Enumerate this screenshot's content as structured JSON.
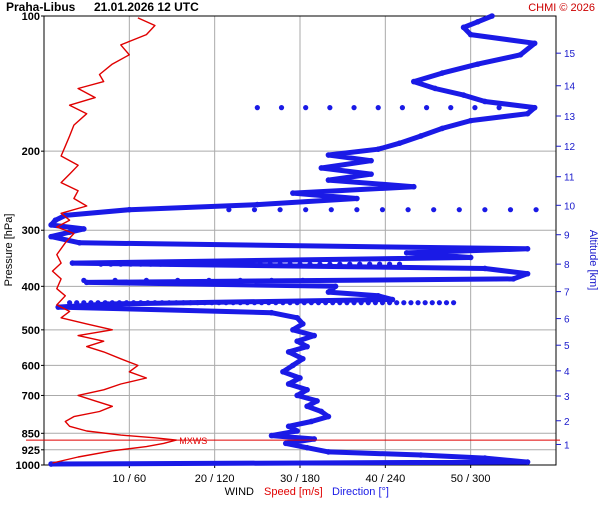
{
  "header": {
    "station": "Praha-Libus",
    "datetime": "21.01.2026 12 UTC",
    "credit": "CHMI © 2026"
  },
  "footer": {
    "wind": "WIND",
    "speed": "Speed [m/s]",
    "direction": "Direction [°]"
  },
  "colors": {
    "speed": "#e00000",
    "direction": "#1a1ae6",
    "grid": "#aaaaaa",
    "altitude_axis": "#1a1acc",
    "maxws": "#e00000"
  },
  "chart_data": {
    "type": "line",
    "y_axis": {
      "label": "Pressure [hPa]",
      "scale": "log",
      "reversed": true,
      "range": [
        1000,
        100
      ],
      "ticks": [
        100,
        200,
        300,
        400,
        500,
        600,
        700,
        850,
        925,
        1000
      ]
    },
    "x_axis": {
      "tick_labels": [
        "10 / 60",
        "20 / 120",
        "30 / 180",
        "40 / 240",
        "50 / 300"
      ],
      "speed_range_ms": [
        0,
        60
      ],
      "direction_range_deg": [
        0,
        360
      ]
    },
    "y2_axis": {
      "label": "Altitude [km]",
      "ticks_km": [
        1,
        2,
        3,
        4,
        5,
        6,
        7,
        8,
        9,
        10,
        11,
        12,
        13,
        14,
        15
      ],
      "tick_pressure_hPa": [
        900,
        797,
        702,
        617,
        541,
        472,
        411,
        357,
        307,
        264,
        228,
        195,
        167,
        143,
        121
      ]
    },
    "grid": true,
    "annotation": {
      "text": "MXWS",
      "pressure_hPa": 880,
      "speed_ms": 15.5
    },
    "series": [
      {
        "name": "Speed [m/s]",
        "unit": "m/s",
        "points": [
          [
            990,
            1
          ],
          [
            960,
            4
          ],
          [
            930,
            8
          ],
          [
            910,
            12
          ],
          [
            895,
            14
          ],
          [
            880,
            15.5
          ],
          [
            870,
            13
          ],
          [
            858,
            9
          ],
          [
            840,
            5
          ],
          [
            820,
            3
          ],
          [
            800,
            2.5
          ],
          [
            780,
            3.5
          ],
          [
            760,
            6.5
          ],
          [
            740,
            8
          ],
          [
            720,
            6
          ],
          [
            700,
            4
          ],
          [
            680,
            7
          ],
          [
            660,
            9
          ],
          [
            640,
            12
          ],
          [
            620,
            10
          ],
          [
            600,
            11
          ],
          [
            580,
            9
          ],
          [
            560,
            7
          ],
          [
            545,
            5
          ],
          [
            530,
            7
          ],
          [
            515,
            4
          ],
          [
            500,
            8
          ],
          [
            485,
            5
          ],
          [
            470,
            2
          ],
          [
            455,
            3
          ],
          [
            440,
            1.5
          ],
          [
            420,
            2.5
          ],
          [
            405,
            1.5
          ],
          [
            385,
            2
          ],
          [
            370,
            1
          ],
          [
            355,
            2
          ],
          [
            340,
            1.5
          ],
          [
            320,
            2.5
          ],
          [
            305,
            3.5
          ],
          [
            295,
            1.5
          ],
          [
            285,
            3
          ],
          [
            275,
            2
          ],
          [
            265,
            5
          ],
          [
            255,
            3.5
          ],
          [
            245,
            4
          ],
          [
            235,
            2
          ],
          [
            225,
            3
          ],
          [
            215,
            4
          ],
          [
            205,
            2
          ],
          [
            195,
            2.5
          ],
          [
            185,
            3
          ],
          [
            175,
            3.5
          ],
          [
            165,
            5
          ],
          [
            158,
            3
          ],
          [
            152,
            6
          ],
          [
            145,
            4
          ],
          [
            140,
            7
          ],
          [
            135,
            6.5
          ],
          [
            128,
            8
          ],
          [
            122,
            10
          ],
          [
            116,
            9
          ],
          [
            110,
            12
          ],
          [
            105,
            13
          ],
          [
            101,
            11
          ]
        ]
      },
      {
        "name": "Direction [°]",
        "unit": "deg",
        "points": [
          [
            995,
            5
          ],
          [
            985,
            340
          ],
          [
            965,
            310
          ],
          [
            950,
            265
          ],
          [
            935,
            200
          ],
          [
            915,
            185
          ],
          [
            895,
            170
          ],
          [
            875,
            190
          ],
          [
            860,
            160
          ],
          [
            840,
            178
          ],
          [
            820,
            172
          ],
          [
            800,
            188
          ],
          [
            780,
            200
          ],
          [
            760,
            195
          ],
          [
            740,
            185
          ],
          [
            720,
            192
          ],
          [
            700,
            178
          ],
          [
            680,
            185
          ],
          [
            660,
            172
          ],
          [
            640,
            180
          ],
          [
            620,
            168
          ],
          [
            600,
            175
          ],
          [
            580,
            182
          ],
          [
            560,
            172
          ],
          [
            545,
            185
          ],
          [
            530,
            178
          ],
          [
            515,
            190
          ],
          [
            500,
            175
          ],
          [
            485,
            182
          ],
          [
            470,
            178
          ],
          [
            458,
            160
          ],
          [
            445,
            10
          ],
          [
            438,
            45
          ],
          [
            428,
            245
          ],
          [
            420,
            235
          ],
          [
            412,
            200
          ],
          [
            400,
            205
          ],
          [
            392,
            30
          ],
          [
            385,
            330
          ],
          [
            375,
            340
          ],
          [
            365,
            310
          ],
          [
            355,
            20
          ],
          [
            345,
            300
          ],
          [
            337,
            255
          ],
          [
            330,
            340
          ],
          [
            320,
            25
          ],
          [
            310,
            5
          ],
          [
            303,
            18
          ],
          [
            298,
            28
          ],
          [
            292,
            5
          ],
          [
            285,
            8
          ],
          [
            278,
            15
          ],
          [
            270,
            60
          ],
          [
            263,
            150
          ],
          [
            255,
            220
          ],
          [
            248,
            175
          ],
          [
            240,
            260
          ],
          [
            232,
            200
          ],
          [
            225,
            230
          ],
          [
            218,
            195
          ],
          [
            210,
            230
          ],
          [
            204,
            200
          ],
          [
            198,
            235
          ],
          [
            192,
            250
          ],
          [
            185,
            265
          ],
          [
            178,
            280
          ],
          [
            171,
            300
          ],
          [
            165,
            340
          ],
          [
            160,
            345
          ],
          [
            155,
            310
          ],
          [
            150,
            295
          ],
          [
            145,
            275
          ],
          [
            140,
            260
          ],
          [
            134,
            280
          ],
          [
            128,
            305
          ],
          [
            122,
            335
          ],
          [
            115,
            345
          ],
          [
            110,
            300
          ],
          [
            106,
            295
          ],
          [
            103,
            305
          ],
          [
            100,
            315
          ]
        ]
      }
    ],
    "scatter_layers": [
      {
        "pressure_hPa": 160,
        "dir_from": 150,
        "dir_to": 336,
        "step": 17,
        "note": "sparse dots"
      },
      {
        "pressure_hPa": 270,
        "dir_from": 130,
        "dir_to": 350,
        "step": 18
      },
      {
        "pressure_hPa": 357,
        "dir_from": 40,
        "dir_to": 250,
        "step": 7
      },
      {
        "pressure_hPa": 388,
        "dir_from": 28,
        "dir_to": 190,
        "step": 22
      },
      {
        "pressure_hPa": 435,
        "dir_from": 18,
        "dir_to": 290,
        "step": 5
      }
    ]
  }
}
